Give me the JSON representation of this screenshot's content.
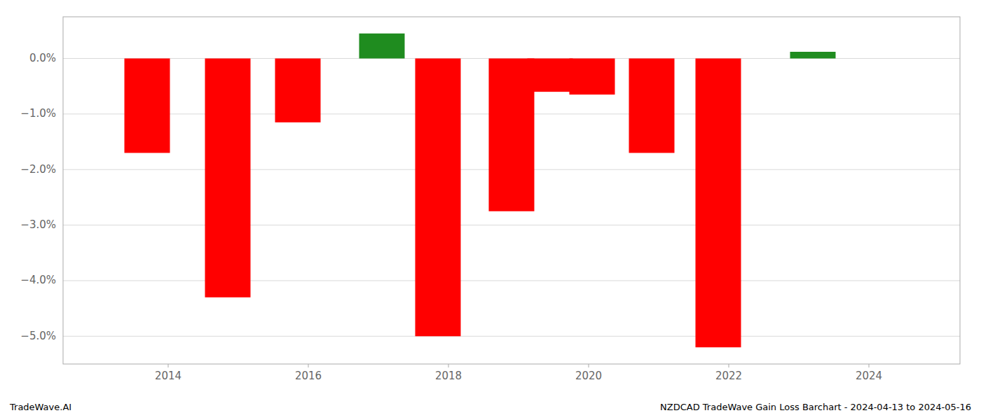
{
  "chart_data": {
    "type": "bar",
    "x": [
      2013.7,
      2014.85,
      2015.85,
      2017.05,
      2017.85,
      2018.9,
      2019.45,
      2020.05,
      2020.9,
      2021.85,
      2023.2
    ],
    "values": [
      -1.7,
      -4.3,
      -1.15,
      0.45,
      -5.0,
      -2.75,
      -0.6,
      -0.65,
      -1.7,
      -5.2,
      0.12
    ],
    "colors": [
      "#ff0000",
      "#ff0000",
      "#ff0000",
      "#1f8c1f",
      "#ff0000",
      "#ff0000",
      "#ff0000",
      "#ff0000",
      "#ff0000",
      "#ff0000",
      "#1f8c1f"
    ],
    "xlim": [
      2012.5,
      2025.3
    ],
    "ylim": [
      -5.5,
      0.75
    ],
    "xticks": [
      2014,
      2016,
      2018,
      2020,
      2022,
      2024
    ],
    "yticks": [
      {
        "value": 0.0,
        "label": "0.0%"
      },
      {
        "value": -1.0,
        "label": "−1.0%"
      },
      {
        "value": -2.0,
        "label": "−2.0%"
      },
      {
        "value": -3.0,
        "label": "−3.0%"
      },
      {
        "value": -4.0,
        "label": "−4.0%"
      },
      {
        "value": -5.0,
        "label": "−5.0%"
      }
    ],
    "grid": true,
    "annotations": [
      "TradeWave.AI",
      "NZDCAD TradeWave Gain Loss Barchart - 2024-04-13 to 2024-05-16"
    ]
  }
}
